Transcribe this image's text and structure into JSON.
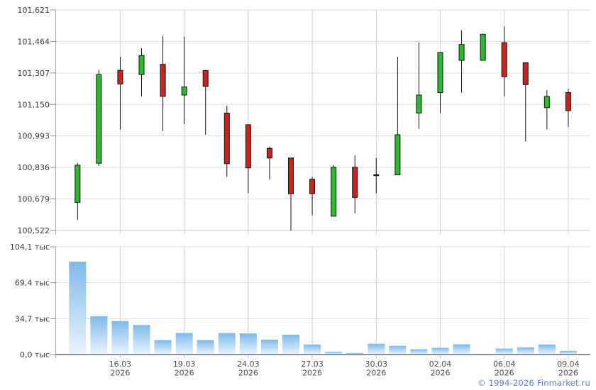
{
  "chart_data": [
    {
      "type": "candlestick",
      "pane": "price",
      "title": "",
      "y_axis": {
        "labels": [
          "101,621",
          "101,464",
          "101,307",
          "101,150",
          "100,993",
          "100,836",
          "100,679",
          "100,522"
        ],
        "max": 101.621,
        "min": 100.522,
        "grid": true,
        "side": "left"
      },
      "x_axis": {
        "ticks": [
          {
            "date": "16.03",
            "year": "2026",
            "candle_index": 2
          },
          {
            "date": "19.03",
            "year": "2026",
            "candle_index": 5
          },
          {
            "date": "24.03",
            "year": "2026",
            "candle_index": 8
          },
          {
            "date": "27.03",
            "year": "2026",
            "candle_index": 11
          },
          {
            "date": "30.03",
            "year": "2026",
            "candle_index": 14
          },
          {
            "date": "02.04",
            "year": "2026",
            "candle_index": 17
          },
          {
            "date": "06.04",
            "year": "2026",
            "candle_index": 20
          },
          {
            "date": "09.04",
            "year": "2026",
            "candle_index": 23
          }
        ]
      },
      "candles": [
        {
          "o": 100.662,
          "h": 100.858,
          "l": 100.575,
          "c": 100.847
        },
        {
          "o": 100.857,
          "h": 101.322,
          "l": 100.843,
          "c": 101.299
        },
        {
          "o": 101.32,
          "h": 101.388,
          "l": 101.025,
          "c": 101.252
        },
        {
          "o": 101.299,
          "h": 101.43,
          "l": 101.19,
          "c": 101.394
        },
        {
          "o": 101.35,
          "h": 101.491,
          "l": 101.017,
          "c": 101.19
        },
        {
          "o": 101.197,
          "h": 101.488,
          "l": 101.052,
          "c": 101.237
        },
        {
          "o": 101.319,
          "h": 101.319,
          "l": 100.999,
          "c": 101.24
        },
        {
          "o": 101.107,
          "h": 101.143,
          "l": 100.789,
          "c": 100.855
        },
        {
          "o": 101.049,
          "h": 101.049,
          "l": 100.708,
          "c": 100.834
        },
        {
          "o": 100.931,
          "h": 100.94,
          "l": 100.775,
          "c": 100.883
        },
        {
          "o": 100.883,
          "h": 100.883,
          "l": 100.522,
          "c": 100.705
        },
        {
          "o": 100.777,
          "h": 100.789,
          "l": 100.598,
          "c": 100.705
        },
        {
          "o": 100.593,
          "h": 100.848,
          "l": 100.593,
          "c": 100.837
        },
        {
          "o": 100.837,
          "h": 100.896,
          "l": 100.608,
          "c": 100.687
        },
        {
          "o": 100.8,
          "h": 100.883,
          "l": 100.707,
          "c": 100.795
        },
        {
          "o": 100.799,
          "h": 101.388,
          "l": 100.799,
          "c": 100.999
        },
        {
          "o": 101.107,
          "h": 101.458,
          "l": 101.028,
          "c": 101.197
        },
        {
          "o": 101.209,
          "h": 101.409,
          "l": 101.107,
          "c": 101.409
        },
        {
          "o": 101.37,
          "h": 101.52,
          "l": 101.209,
          "c": 101.449
        },
        {
          "o": 101.37,
          "h": 101.5,
          "l": 101.37,
          "c": 101.5
        },
        {
          "o": 101.458,
          "h": 101.539,
          "l": 101.19,
          "c": 101.288
        },
        {
          "o": 101.358,
          "h": 101.358,
          "l": 100.966,
          "c": 101.249
        },
        {
          "o": 101.134,
          "h": 101.221,
          "l": 101.025,
          "c": 101.19
        },
        {
          "o": 101.209,
          "h": 101.229,
          "l": 101.037,
          "c": 101.119
        }
      ],
      "colors": {
        "up": "#2db92d",
        "down": "#c8241f",
        "wick": "#141414",
        "body_border": "#141414"
      }
    },
    {
      "type": "bar",
      "pane": "volume",
      "title": "",
      "y_axis": {
        "labels": [
          "104,1 тыс",
          "69,4 тыс",
          "34,7 тыс",
          "0,0 тыс"
        ],
        "max": 104.1,
        "min": 0,
        "unit": "тыс",
        "grid": true,
        "side": "left"
      },
      "values": [
        89.7,
        37.0,
        32.4,
        28.5,
        13.9,
        20.8,
        13.9,
        20.8,
        20.4,
        14.4,
        19.2,
        9.7,
        2.8,
        1.6,
        10.4,
        8.5,
        5.1,
        6.5,
        9.9,
        0.7,
        5.8,
        6.9,
        9.7,
        3.5
      ],
      "colors": {
        "bar_top": "#7ebae9",
        "bar_bottom": "#eaf4fd"
      }
    }
  ],
  "footer": {
    "copyright": "© 1994-2026 Finmarket.ru",
    "color": "#5b7de1"
  },
  "axis_text": {
    "label_color": "#3b3b42",
    "date_color": "#4e4e55"
  }
}
